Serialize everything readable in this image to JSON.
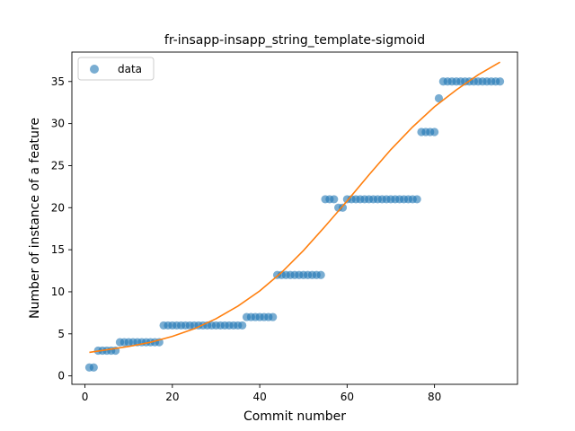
{
  "chart_data": {
    "type": "scatter",
    "title": "fr-insapp-insapp_string_template-sigmoid",
    "xlabel": "Commit number",
    "ylabel": "Number of instance of a feature",
    "xlim": [
      -3,
      99
    ],
    "ylim": [
      -1,
      38.5
    ],
    "xticks": [
      0,
      20,
      40,
      60,
      80
    ],
    "yticks": [
      0,
      5,
      10,
      15,
      20,
      25,
      30,
      35
    ],
    "legend": {
      "position": "top-left",
      "entries": [
        "data"
      ]
    },
    "grid": false,
    "colors": {
      "data": "#1f77b4",
      "fit": "#ff7f0e"
    },
    "series": [
      {
        "name": "data",
        "kind": "scatter",
        "x": [
          1,
          2,
          3,
          4,
          5,
          6,
          7,
          8,
          9,
          10,
          11,
          12,
          13,
          14,
          15,
          16,
          17,
          18,
          19,
          20,
          21,
          22,
          23,
          24,
          25,
          26,
          27,
          28,
          29,
          30,
          31,
          32,
          33,
          34,
          35,
          36,
          37,
          38,
          39,
          40,
          41,
          42,
          43,
          44,
          45,
          46,
          47,
          48,
          49,
          50,
          51,
          52,
          53,
          54,
          55,
          56,
          57,
          58,
          59,
          60,
          61,
          62,
          63,
          64,
          65,
          66,
          67,
          68,
          69,
          70,
          71,
          72,
          73,
          74,
          75,
          76,
          77,
          78,
          79,
          80,
          81,
          82,
          83,
          84,
          85,
          86,
          87,
          88,
          89,
          90,
          91,
          92,
          93,
          94,
          95
        ],
        "y": [
          1,
          1,
          3,
          3,
          3,
          3,
          3,
          4,
          4,
          4,
          4,
          4,
          4,
          4,
          4,
          4,
          4,
          6,
          6,
          6,
          6,
          6,
          6,
          6,
          6,
          6,
          6,
          6,
          6,
          6,
          6,
          6,
          6,
          6,
          6,
          6,
          7,
          7,
          7,
          7,
          7,
          7,
          7,
          12,
          12,
          12,
          12,
          12,
          12,
          12,
          12,
          12,
          12,
          12,
          21,
          21,
          21,
          20,
          20,
          21,
          21,
          21,
          21,
          21,
          21,
          21,
          21,
          21,
          21,
          21,
          21,
          21,
          21,
          21,
          21,
          21,
          29,
          29,
          29,
          29,
          33,
          35,
          35,
          35,
          35,
          35,
          35,
          35,
          35,
          35,
          35,
          35,
          35,
          35,
          35
        ]
      },
      {
        "name": "",
        "kind": "line",
        "x": [
          1,
          5,
          10,
          15,
          20,
          25,
          30,
          35,
          40,
          45,
          50,
          55,
          60,
          65,
          70,
          75,
          80,
          85,
          90,
          95
        ],
        "y": [
          2.8,
          3.1,
          3.5,
          4.0,
          4.7,
          5.6,
          6.8,
          8.3,
          10.1,
          12.3,
          14.9,
          17.8,
          20.8,
          23.9,
          26.9,
          29.6,
          32.0,
          34.0,
          35.8,
          37.3
        ]
      }
    ]
  }
}
